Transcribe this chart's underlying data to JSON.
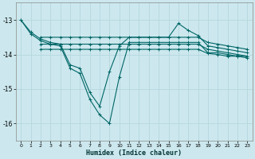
{
  "xlabel": "Humidex (Indice chaleur)",
  "ylabel": "",
  "background_color": "#cce8ee",
  "grid_color": "#b8d8e0",
  "line_color": "#006666",
  "xlim": [
    -0.5,
    23.5
  ],
  "ylim": [
    -16.5,
    -12.5
  ],
  "yticks": [
    -16,
    -15,
    -14,
    -13
  ],
  "xticks": [
    0,
    1,
    2,
    3,
    4,
    5,
    6,
    7,
    8,
    9,
    10,
    11,
    12,
    13,
    14,
    15,
    16,
    17,
    18,
    19,
    20,
    21,
    22,
    23
  ],
  "series": [
    {
      "x": [
        0,
        1,
        2,
        3,
        4,
        5,
        6,
        7,
        8,
        9,
        10,
        11,
        12,
        13,
        14,
        15,
        16,
        17,
        18,
        19,
        20,
        21,
        22,
        23
      ],
      "y": [
        -13.0,
        -13.4,
        -13.6,
        -13.7,
        -13.75,
        -14.4,
        -14.55,
        -15.3,
        -15.75,
        -16.0,
        -14.65,
        -13.65,
        -13.65,
        -13.65,
        -13.65,
        -13.65,
        -13.65,
        -13.65,
        -13.65,
        -13.95,
        -13.95,
        -14.0,
        -14.05,
        -14.05
      ]
    },
    {
      "x": [
        2,
        3,
        4,
        5,
        6,
        7,
        8,
        9,
        10,
        11,
        12,
        13,
        14,
        15,
        16,
        17,
        18,
        19,
        20,
        21,
        22,
        23
      ],
      "y": [
        -13.5,
        -13.5,
        -13.5,
        -13.5,
        -13.5,
        -13.5,
        -13.5,
        -13.5,
        -13.5,
        -13.5,
        -13.5,
        -13.5,
        -13.5,
        -13.5,
        -13.5,
        -13.5,
        -13.5,
        -13.65,
        -13.7,
        -13.75,
        -13.8,
        -13.85
      ]
    },
    {
      "x": [
        2,
        3,
        4,
        5,
        6,
        7,
        8,
        9,
        10,
        11,
        12,
        13,
        14,
        15,
        16,
        17,
        18,
        19,
        20,
        21,
        22,
        23
      ],
      "y": [
        -13.7,
        -13.7,
        -13.7,
        -13.7,
        -13.7,
        -13.7,
        -13.7,
        -13.7,
        -13.7,
        -13.7,
        -13.7,
        -13.7,
        -13.7,
        -13.7,
        -13.7,
        -13.7,
        -13.7,
        -13.85,
        -13.9,
        -13.95,
        -14.0,
        -14.05
      ]
    },
    {
      "x": [
        0,
        1,
        2,
        3,
        4,
        5,
        6,
        7,
        8,
        9,
        10,
        11,
        12,
        13,
        14,
        15,
        16,
        17,
        18,
        19,
        20,
        21,
        22,
        23
      ],
      "y": [
        -13.0,
        -13.35,
        -13.55,
        -13.65,
        -13.7,
        -14.3,
        -14.4,
        -15.1,
        -15.5,
        -14.5,
        -13.75,
        -13.5,
        -13.5,
        -13.5,
        -13.5,
        -13.5,
        -13.1,
        -13.3,
        -13.45,
        -13.75,
        -13.8,
        -13.85,
        -13.9,
        -13.95
      ]
    },
    {
      "x": [
        2,
        3,
        4,
        5,
        6,
        7,
        8,
        9,
        10,
        11,
        12,
        13,
        14,
        15,
        16,
        17,
        18,
        19,
        20,
        21,
        22,
        23
      ],
      "y": [
        -13.85,
        -13.85,
        -13.85,
        -13.85,
        -13.85,
        -13.85,
        -13.85,
        -13.85,
        -13.85,
        -13.85,
        -13.85,
        -13.85,
        -13.85,
        -13.85,
        -13.85,
        -13.85,
        -13.85,
        -13.97,
        -14.0,
        -14.05,
        -14.05,
        -14.1
      ]
    }
  ]
}
